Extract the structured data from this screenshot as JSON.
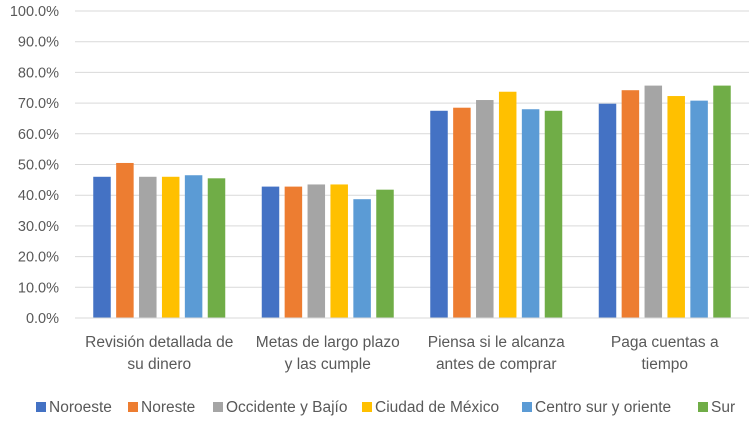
{
  "chart_data": {
    "type": "bar",
    "title": "",
    "xlabel": "",
    "ylabel": "",
    "ylim": [
      0,
      100
    ],
    "ytick_step": 10,
    "ytick_labels": [
      "0.0%",
      "10.0%",
      "20.0%",
      "30.0%",
      "40.0%",
      "50.0%",
      "60.0%",
      "70.0%",
      "80.0%",
      "90.0%",
      "100.0%"
    ],
    "grid": true,
    "legend_position": "bottom",
    "categories": [
      [
        "Revisión detallada de",
        "su dinero"
      ],
      [
        "Metas de largo plazo",
        "y las cumple"
      ],
      [
        "Piensa si le alcanza",
        "antes de comprar"
      ],
      [
        "Paga cuentas a",
        "tiempo"
      ]
    ],
    "series": [
      {
        "name": "Noroeste",
        "color": "#4472C4",
        "values": [
          46.0,
          42.8,
          67.5,
          69.8
        ]
      },
      {
        "name": "Noreste",
        "color": "#ED7D31",
        "values": [
          50.5,
          42.8,
          68.5,
          74.2
        ]
      },
      {
        "name": "Occidente y Bajío",
        "color": "#A5A5A5",
        "values": [
          46.0,
          43.5,
          71.0,
          75.7
        ]
      },
      {
        "name": "Ciudad de México",
        "color": "#FFC000",
        "values": [
          46.0,
          43.5,
          73.7,
          72.3
        ]
      },
      {
        "name": "Centro sur y oriente",
        "color": "#5B9BD5",
        "values": [
          46.5,
          38.7,
          68.0,
          70.8
        ]
      },
      {
        "name": "Sur",
        "color": "#70AD47",
        "values": [
          45.5,
          41.8,
          67.5,
          75.7
        ]
      }
    ]
  }
}
